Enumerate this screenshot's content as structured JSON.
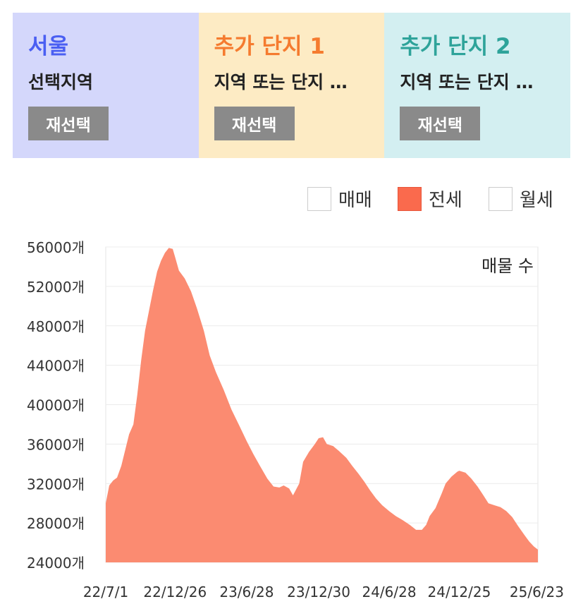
{
  "cards": [
    {
      "title": "서울",
      "title_color": "#4a5ff2",
      "subtitle": "선택지역",
      "button": "재선택"
    },
    {
      "title": "추가 단지 1",
      "title_color": "#f57b2f",
      "subtitle": "지역 또는 단지 …",
      "button": "재선택"
    },
    {
      "title": "추가 단지 2",
      "title_color": "#2ea39a",
      "subtitle": "지역 또는 단지 …",
      "button": "재선택"
    }
  ],
  "legend": [
    {
      "label": "매매",
      "checked": false
    },
    {
      "label": "전세",
      "checked": true
    },
    {
      "label": "월세",
      "checked": false
    }
  ],
  "chart_data": {
    "type": "area",
    "annotation": "매물 수",
    "series": [
      {
        "color": "#fb8b71",
        "points": [
          [
            "22/7/1",
            30000
          ],
          [
            "22/7/10",
            31800
          ],
          [
            "22/7/20",
            32300
          ],
          [
            "22/7/30",
            32600
          ],
          [
            "22/8/10",
            33800
          ],
          [
            "22/8/20",
            35400
          ],
          [
            "22/8/30",
            37000
          ],
          [
            "22/9/10",
            38000
          ],
          [
            "22/9/20",
            41000
          ],
          [
            "22/9/30",
            44500
          ],
          [
            "22/10/10",
            47500
          ],
          [
            "22/10/20",
            49500
          ],
          [
            "22/10/30",
            51500
          ],
          [
            "22/11/10",
            53500
          ],
          [
            "22/11/20",
            54600
          ],
          [
            "22/11/30",
            55400
          ],
          [
            "22/12/10",
            55900
          ],
          [
            "22/12/20",
            55800
          ],
          [
            "22/12/26",
            55000
          ],
          [
            "23/1/5",
            53600
          ],
          [
            "23/1/20",
            52800
          ],
          [
            "23/2/5",
            51500
          ],
          [
            "23/2/20",
            49800
          ],
          [
            "23/3/10",
            47500
          ],
          [
            "23/3/25",
            45000
          ],
          [
            "23/4/10",
            43300
          ],
          [
            "23/4/30",
            41500
          ],
          [
            "23/5/20",
            39500
          ],
          [
            "23/6/10",
            37800
          ],
          [
            "23/6/28",
            36300
          ],
          [
            "23/7/15",
            35000
          ],
          [
            "23/8/1",
            33800
          ],
          [
            "23/8/20",
            32500
          ],
          [
            "23/9/5",
            31700
          ],
          [
            "23/9/20",
            31600
          ],
          [
            "23/10/1",
            31800
          ],
          [
            "23/10/15",
            31500
          ],
          [
            "23/10/25",
            30800
          ],
          [
            "23/11/10",
            32000
          ],
          [
            "23/11/20",
            34200
          ],
          [
            "23/12/5",
            35200
          ],
          [
            "23/12/20",
            36000
          ],
          [
            "23/12/30",
            36600
          ],
          [
            "24/1/10",
            36700
          ],
          [
            "24/1/20",
            36000
          ],
          [
            "24/2/5",
            35800
          ],
          [
            "24/2/20",
            35300
          ],
          [
            "24/3/10",
            34600
          ],
          [
            "24/3/25",
            33800
          ],
          [
            "24/4/10",
            33000
          ],
          [
            "24/4/25",
            32200
          ],
          [
            "24/5/10",
            31300
          ],
          [
            "24/5/25",
            30500
          ],
          [
            "24/6/10",
            29800
          ],
          [
            "24/6/28",
            29200
          ],
          [
            "24/7/15",
            28700
          ],
          [
            "24/8/1",
            28300
          ],
          [
            "24/8/20",
            27800
          ],
          [
            "24/9/5",
            27300
          ],
          [
            "24/9/20",
            27300
          ],
          [
            "24/10/1",
            27800
          ],
          [
            "24/10/10",
            28700
          ],
          [
            "24/10/25",
            29500
          ],
          [
            "24/11/10",
            31000
          ],
          [
            "24/11/20",
            32000
          ],
          [
            "24/12/5",
            32700
          ],
          [
            "24/12/20",
            33200
          ],
          [
            "24/12/25",
            33300
          ],
          [
            "25/1/10",
            33100
          ],
          [
            "25/1/25",
            32500
          ],
          [
            "25/2/10",
            31700
          ],
          [
            "25/2/25",
            30800
          ],
          [
            "25/3/10",
            30000
          ],
          [
            "25/3/25",
            29800
          ],
          [
            "25/4/10",
            29600
          ],
          [
            "25/4/25",
            29200
          ],
          [
            "25/5/10",
            28600
          ],
          [
            "25/5/25",
            27700
          ],
          [
            "25/6/10",
            26800
          ],
          [
            "25/6/23",
            26100
          ],
          [
            "25/7/5",
            25600
          ],
          [
            "25/7/15",
            25300
          ]
        ]
      }
    ],
    "x_ticks": [
      "22/7/1",
      "22/12/26",
      "23/6/28",
      "23/12/30",
      "24/6/28",
      "24/12/25",
      "25/6/23"
    ],
    "y_ticks": [
      24000,
      28000,
      32000,
      36000,
      40000,
      44000,
      48000,
      52000,
      56000
    ],
    "y_tick_labels": [
      "24000개",
      "28000개",
      "32000개",
      "36000개",
      "40000개",
      "44000개",
      "48000개",
      "52000개",
      "56000개"
    ],
    "ylim": [
      24000,
      56000
    ],
    "grid": true
  }
}
